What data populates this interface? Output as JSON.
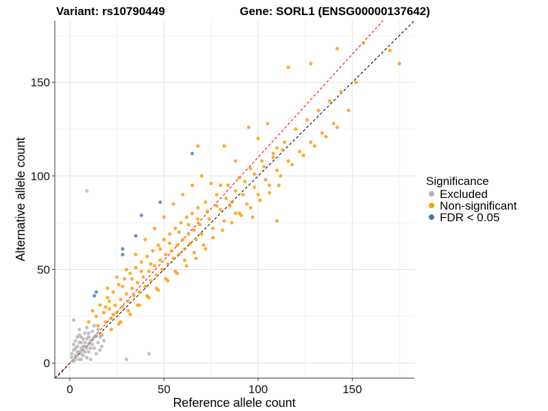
{
  "chart_data": {
    "type": "scatter",
    "title_left": "Variant: rs10790449",
    "title_right": "Gene: SORL1 (ENSG00000137642)",
    "xlabel": "Reference allele count",
    "ylabel": "Alternative allele count",
    "xlim": [
      -8,
      183
    ],
    "ylim": [
      -8,
      183
    ],
    "x_ticks": [
      0,
      50,
      100,
      150
    ],
    "y_ticks": [
      0,
      50,
      100,
      150
    ],
    "grid": true,
    "legend": {
      "title": "Significance",
      "placement": "right",
      "entries": [
        {
          "label": "Excluded",
          "color": "#b3b3b3"
        },
        {
          "label": "Non-significant",
          "color": "#ff9900"
        },
        {
          "label": "FDR < 0.05",
          "color": "#4a78ac"
        }
      ]
    },
    "reference_lines": [
      {
        "slope": 1.0,
        "intercept": 0,
        "color": "#000000",
        "style": "dashed"
      },
      {
        "slope": 1.1,
        "intercept": 0,
        "color": "#ff0000",
        "style": "dashed"
      }
    ],
    "series": [
      {
        "name": "Excluded",
        "color": "#b3b3b3",
        "points": [
          [
            9,
            92
          ],
          [
            30,
            2
          ],
          [
            42,
            5
          ],
          [
            2,
            23
          ],
          [
            5,
            18
          ],
          [
            8,
            16
          ],
          [
            3,
            12
          ],
          [
            6,
            8
          ],
          [
            4,
            6
          ],
          [
            1,
            3
          ],
          [
            2,
            1
          ],
          [
            3,
            4
          ],
          [
            7,
            4
          ],
          [
            5,
            2
          ],
          [
            10,
            6
          ],
          [
            12,
            10
          ],
          [
            8,
            11
          ],
          [
            6,
            14
          ],
          [
            10,
            14
          ],
          [
            12,
            17
          ],
          [
            14,
            5
          ],
          [
            9,
            3
          ],
          [
            11,
            2
          ],
          [
            4,
            9
          ],
          [
            7,
            9
          ],
          [
            13,
            20
          ],
          [
            15,
            11
          ],
          [
            16,
            14
          ],
          [
            3,
            2
          ],
          [
            5,
            11
          ],
          [
            7,
            13
          ],
          [
            9,
            8
          ],
          [
            11,
            12
          ],
          [
            13,
            8
          ],
          [
            2,
            7
          ],
          [
            4,
            14
          ],
          [
            6,
            5
          ],
          [
            8,
            6
          ],
          [
            10,
            10
          ],
          [
            14,
            15
          ],
          [
            1,
            5
          ],
          [
            3,
            8
          ],
          [
            5,
            6
          ],
          [
            7,
            7
          ],
          [
            9,
            13
          ],
          [
            11,
            8
          ],
          [
            13,
            14
          ],
          [
            15,
            18
          ],
          [
            17,
            9
          ],
          [
            6,
            11
          ],
          [
            8,
            9
          ],
          [
            10,
            16
          ],
          [
            12,
            13
          ],
          [
            2,
            10
          ],
          [
            4,
            4
          ],
          [
            6,
            2
          ],
          [
            16,
            7
          ],
          [
            18,
            12
          ],
          [
            5,
            15
          ],
          [
            9,
            19
          ]
        ]
      },
      {
        "name": "Non-significant",
        "color": "#ff9900",
        "points": [
          [
            10,
            22
          ],
          [
            12,
            28
          ],
          [
            14,
            25
          ],
          [
            15,
            20
          ],
          [
            16,
            31
          ],
          [
            18,
            27
          ],
          [
            19,
            22
          ],
          [
            20,
            35
          ],
          [
            21,
            29
          ],
          [
            22,
            24
          ],
          [
            23,
            38
          ],
          [
            24,
            31
          ],
          [
            25,
            27
          ],
          [
            26,
            42
          ],
          [
            27,
            34
          ],
          [
            28,
            30
          ],
          [
            29,
            45
          ],
          [
            30,
            37
          ],
          [
            31,
            33
          ],
          [
            32,
            48
          ],
          [
            33,
            40
          ],
          [
            34,
            36
          ],
          [
            35,
            51
          ],
          [
            36,
            43
          ],
          [
            37,
            38
          ],
          [
            38,
            54
          ],
          [
            39,
            46
          ],
          [
            40,
            41
          ],
          [
            41,
            57
          ],
          [
            42,
            49
          ],
          [
            43,
            44
          ],
          [
            44,
            60
          ],
          [
            45,
            52
          ],
          [
            46,
            47
          ],
          [
            47,
            63
          ],
          [
            48,
            55
          ],
          [
            49,
            50
          ],
          [
            50,
            66
          ],
          [
            51,
            58
          ],
          [
            52,
            53
          ],
          [
            53,
            69
          ],
          [
            54,
            60
          ],
          [
            55,
            56
          ],
          [
            56,
            72
          ],
          [
            57,
            63
          ],
          [
            58,
            58
          ],
          [
            59,
            75
          ],
          [
            60,
            66
          ],
          [
            61,
            61
          ],
          [
            62,
            78
          ],
          [
            63,
            69
          ],
          [
            64,
            64
          ],
          [
            65,
            80
          ],
          [
            66,
            71
          ],
          [
            67,
            66
          ],
          [
            68,
            83
          ],
          [
            69,
            74
          ],
          [
            70,
            69
          ],
          [
            72,
            86
          ],
          [
            74,
            77
          ],
          [
            76,
            72
          ],
          [
            78,
            90
          ],
          [
            80,
            82
          ],
          [
            82,
            76
          ],
          [
            84,
            95
          ],
          [
            86,
            86
          ],
          [
            88,
            80
          ],
          [
            90,
            99
          ],
          [
            92,
            90
          ],
          [
            94,
            85
          ],
          [
            96,
            104
          ],
          [
            98,
            94
          ],
          [
            100,
            90
          ],
          [
            102,
            108
          ],
          [
            104,
            98
          ],
          [
            106,
            95
          ],
          [
            108,
            112
          ],
          [
            110,
            103
          ],
          [
            112,
            100
          ],
          [
            114,
            118
          ],
          [
            116,
            108
          ],
          [
            118,
            106
          ],
          [
            120,
            125
          ],
          [
            122,
            113
          ],
          [
            124,
            111
          ],
          [
            126,
            130
          ],
          [
            128,
            118
          ],
          [
            130,
            116
          ],
          [
            132,
            135
          ],
          [
            134,
            123
          ],
          [
            136,
            121
          ],
          [
            138,
            140
          ],
          [
            140,
            128
          ],
          [
            142,
            126
          ],
          [
            144,
            145
          ],
          [
            148,
            135
          ],
          [
            152,
            150
          ],
          [
            156,
            171
          ],
          [
            142,
            168
          ],
          [
            128,
            160
          ],
          [
            116,
            158
          ],
          [
            175,
            160
          ],
          [
            170,
            167
          ],
          [
            110,
            76
          ],
          [
            97,
            78
          ],
          [
            90,
            80
          ],
          [
            85,
            84
          ],
          [
            80,
            95
          ],
          [
            75,
            96
          ],
          [
            68,
            116
          ],
          [
            82,
            116
          ],
          [
            88,
            108
          ],
          [
            95,
            126
          ],
          [
            100,
            120
          ],
          [
            105,
            128
          ],
          [
            110,
            115
          ],
          [
            20,
            40
          ],
          [
            25,
            46
          ],
          [
            30,
            50
          ],
          [
            35,
            58
          ],
          [
            40,
            66
          ],
          [
            45,
            72
          ],
          [
            50,
            78
          ],
          [
            55,
            85
          ],
          [
            60,
            90
          ],
          [
            65,
            95
          ],
          [
            70,
            100
          ],
          [
            22,
            18
          ],
          [
            27,
            22
          ],
          [
            32,
            26
          ],
          [
            37,
            31
          ],
          [
            42,
            35
          ],
          [
            47,
            39
          ],
          [
            52,
            44
          ],
          [
            57,
            48
          ],
          [
            62,
            52
          ],
          [
            67,
            56
          ],
          [
            72,
            61
          ],
          [
            17,
            15
          ],
          [
            19,
            30
          ],
          [
            21,
            33
          ],
          [
            23,
            26
          ],
          [
            26,
            21
          ],
          [
            28,
            41
          ],
          [
            31,
            28
          ],
          [
            33,
            45
          ],
          [
            36,
            31
          ],
          [
            38,
            49
          ],
          [
            41,
            36
          ],
          [
            43,
            53
          ],
          [
            46,
            40
          ],
          [
            48,
            61
          ],
          [
            51,
            45
          ],
          [
            53,
            64
          ],
          [
            56,
            49
          ],
          [
            58,
            70
          ],
          [
            61,
            55
          ],
          [
            63,
            74
          ],
          [
            66,
            59
          ],
          [
            68,
            77
          ],
          [
            71,
            63
          ],
          [
            73,
            81
          ],
          [
            76,
            67
          ],
          [
            78,
            84
          ],
          [
            81,
            71
          ],
          [
            83,
            88
          ],
          [
            86,
            75
          ],
          [
            88,
            92
          ],
          [
            91,
            79
          ],
          [
            93,
            97
          ],
          [
            96,
            83
          ],
          [
            98,
            101
          ],
          [
            101,
            87
          ],
          [
            103,
            105
          ],
          [
            106,
            91
          ],
          [
            108,
            110
          ],
          [
            111,
            95
          ],
          [
            113,
            114
          ]
        ]
      },
      {
        "name": "FDR < 0.05",
        "color": "#4a78ac",
        "points": [
          [
            65,
            112
          ],
          [
            48,
            86
          ],
          [
            38,
            79
          ],
          [
            35,
            68
          ],
          [
            28,
            61
          ],
          [
            28,
            58
          ],
          [
            14,
            38
          ],
          [
            13,
            36
          ]
        ]
      }
    ]
  }
}
